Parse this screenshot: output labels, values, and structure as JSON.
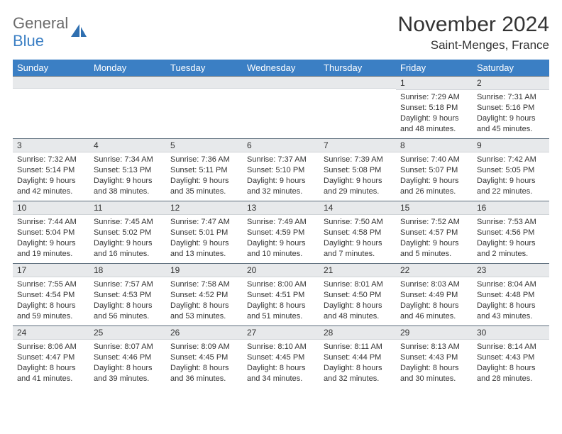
{
  "brand": {
    "text_top": "General",
    "text_bottom": "Blue",
    "icon_fill": "#2f6fb0"
  },
  "header": {
    "month_title": "November 2024",
    "location": "Saint-Menges, France"
  },
  "styling": {
    "header_bg": "#3b7fc4",
    "header_fg": "#ffffff",
    "daynum_bg": "#e7e9eb",
    "daynum_border_top": "#5a6b7a",
    "body_text": "#333333",
    "page_bg": "#ffffff",
    "th_fontsize": 13,
    "cell_fontsize": 11,
    "title_fontsize": 30,
    "location_fontsize": 17
  },
  "day_labels": [
    "Sunday",
    "Monday",
    "Tuesday",
    "Wednesday",
    "Thursday",
    "Friday",
    "Saturday"
  ],
  "weeks": [
    [
      {
        "n": "",
        "sr": "",
        "ss": "",
        "dl": ""
      },
      {
        "n": "",
        "sr": "",
        "ss": "",
        "dl": ""
      },
      {
        "n": "",
        "sr": "",
        "ss": "",
        "dl": ""
      },
      {
        "n": "",
        "sr": "",
        "ss": "",
        "dl": ""
      },
      {
        "n": "",
        "sr": "",
        "ss": "",
        "dl": ""
      },
      {
        "n": "1",
        "sr": "Sunrise: 7:29 AM",
        "ss": "Sunset: 5:18 PM",
        "dl": "Daylight: 9 hours and 48 minutes."
      },
      {
        "n": "2",
        "sr": "Sunrise: 7:31 AM",
        "ss": "Sunset: 5:16 PM",
        "dl": "Daylight: 9 hours and 45 minutes."
      }
    ],
    [
      {
        "n": "3",
        "sr": "Sunrise: 7:32 AM",
        "ss": "Sunset: 5:14 PM",
        "dl": "Daylight: 9 hours and 42 minutes."
      },
      {
        "n": "4",
        "sr": "Sunrise: 7:34 AM",
        "ss": "Sunset: 5:13 PM",
        "dl": "Daylight: 9 hours and 38 minutes."
      },
      {
        "n": "5",
        "sr": "Sunrise: 7:36 AM",
        "ss": "Sunset: 5:11 PM",
        "dl": "Daylight: 9 hours and 35 minutes."
      },
      {
        "n": "6",
        "sr": "Sunrise: 7:37 AM",
        "ss": "Sunset: 5:10 PM",
        "dl": "Daylight: 9 hours and 32 minutes."
      },
      {
        "n": "7",
        "sr": "Sunrise: 7:39 AM",
        "ss": "Sunset: 5:08 PM",
        "dl": "Daylight: 9 hours and 29 minutes."
      },
      {
        "n": "8",
        "sr": "Sunrise: 7:40 AM",
        "ss": "Sunset: 5:07 PM",
        "dl": "Daylight: 9 hours and 26 minutes."
      },
      {
        "n": "9",
        "sr": "Sunrise: 7:42 AM",
        "ss": "Sunset: 5:05 PM",
        "dl": "Daylight: 9 hours and 22 minutes."
      }
    ],
    [
      {
        "n": "10",
        "sr": "Sunrise: 7:44 AM",
        "ss": "Sunset: 5:04 PM",
        "dl": "Daylight: 9 hours and 19 minutes."
      },
      {
        "n": "11",
        "sr": "Sunrise: 7:45 AM",
        "ss": "Sunset: 5:02 PM",
        "dl": "Daylight: 9 hours and 16 minutes."
      },
      {
        "n": "12",
        "sr": "Sunrise: 7:47 AM",
        "ss": "Sunset: 5:01 PM",
        "dl": "Daylight: 9 hours and 13 minutes."
      },
      {
        "n": "13",
        "sr": "Sunrise: 7:49 AM",
        "ss": "Sunset: 4:59 PM",
        "dl": "Daylight: 9 hours and 10 minutes."
      },
      {
        "n": "14",
        "sr": "Sunrise: 7:50 AM",
        "ss": "Sunset: 4:58 PM",
        "dl": "Daylight: 9 hours and 7 minutes."
      },
      {
        "n": "15",
        "sr": "Sunrise: 7:52 AM",
        "ss": "Sunset: 4:57 PM",
        "dl": "Daylight: 9 hours and 5 minutes."
      },
      {
        "n": "16",
        "sr": "Sunrise: 7:53 AM",
        "ss": "Sunset: 4:56 PM",
        "dl": "Daylight: 9 hours and 2 minutes."
      }
    ],
    [
      {
        "n": "17",
        "sr": "Sunrise: 7:55 AM",
        "ss": "Sunset: 4:54 PM",
        "dl": "Daylight: 8 hours and 59 minutes."
      },
      {
        "n": "18",
        "sr": "Sunrise: 7:57 AM",
        "ss": "Sunset: 4:53 PM",
        "dl": "Daylight: 8 hours and 56 minutes."
      },
      {
        "n": "19",
        "sr": "Sunrise: 7:58 AM",
        "ss": "Sunset: 4:52 PM",
        "dl": "Daylight: 8 hours and 53 minutes."
      },
      {
        "n": "20",
        "sr": "Sunrise: 8:00 AM",
        "ss": "Sunset: 4:51 PM",
        "dl": "Daylight: 8 hours and 51 minutes."
      },
      {
        "n": "21",
        "sr": "Sunrise: 8:01 AM",
        "ss": "Sunset: 4:50 PM",
        "dl": "Daylight: 8 hours and 48 minutes."
      },
      {
        "n": "22",
        "sr": "Sunrise: 8:03 AM",
        "ss": "Sunset: 4:49 PM",
        "dl": "Daylight: 8 hours and 46 minutes."
      },
      {
        "n": "23",
        "sr": "Sunrise: 8:04 AM",
        "ss": "Sunset: 4:48 PM",
        "dl": "Daylight: 8 hours and 43 minutes."
      }
    ],
    [
      {
        "n": "24",
        "sr": "Sunrise: 8:06 AM",
        "ss": "Sunset: 4:47 PM",
        "dl": "Daylight: 8 hours and 41 minutes."
      },
      {
        "n": "25",
        "sr": "Sunrise: 8:07 AM",
        "ss": "Sunset: 4:46 PM",
        "dl": "Daylight: 8 hours and 39 minutes."
      },
      {
        "n": "26",
        "sr": "Sunrise: 8:09 AM",
        "ss": "Sunset: 4:45 PM",
        "dl": "Daylight: 8 hours and 36 minutes."
      },
      {
        "n": "27",
        "sr": "Sunrise: 8:10 AM",
        "ss": "Sunset: 4:45 PM",
        "dl": "Daylight: 8 hours and 34 minutes."
      },
      {
        "n": "28",
        "sr": "Sunrise: 8:11 AM",
        "ss": "Sunset: 4:44 PM",
        "dl": "Daylight: 8 hours and 32 minutes."
      },
      {
        "n": "29",
        "sr": "Sunrise: 8:13 AM",
        "ss": "Sunset: 4:43 PM",
        "dl": "Daylight: 8 hours and 30 minutes."
      },
      {
        "n": "30",
        "sr": "Sunrise: 8:14 AM",
        "ss": "Sunset: 4:43 PM",
        "dl": "Daylight: 8 hours and 28 minutes."
      }
    ]
  ]
}
